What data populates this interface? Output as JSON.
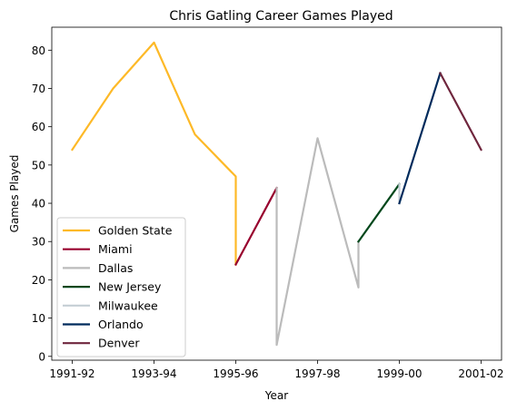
{
  "chart_data": {
    "type": "line",
    "title": "Chris Gatling Career Games Played",
    "xlabel": "Year",
    "ylabel": "Games Played",
    "x_tick_labels": [
      "1991-92",
      "1993-94",
      "1995-96",
      "1997-98",
      "1999-00",
      "2001-02"
    ],
    "x_tick_positions": [
      0,
      2,
      4,
      6,
      8,
      10
    ],
    "y_ticks": [
      0,
      10,
      20,
      30,
      40,
      50,
      60,
      70,
      80
    ],
    "xlim": [
      -0.5,
      10.5
    ],
    "ylim": [
      -1,
      86
    ],
    "grid": false,
    "legend_position": "lower-left",
    "series": [
      {
        "name": "Golden State",
        "color": "#FDB927",
        "points": [
          [
            0,
            54
          ],
          [
            1,
            70
          ],
          [
            2,
            82
          ],
          [
            3,
            58
          ],
          [
            4,
            47
          ],
          [
            4,
            24
          ]
        ]
      },
      {
        "name": "Miami",
        "color": "#98002E",
        "points": [
          [
            4,
            24
          ],
          [
            5,
            44
          ]
        ]
      },
      {
        "name": "Dallas",
        "color": "#BBBBBB",
        "points": [
          [
            5,
            44
          ],
          [
            5,
            3
          ],
          [
            6,
            57
          ],
          [
            7,
            18
          ],
          [
            7,
            30
          ]
        ]
      },
      {
        "name": "New Jersey",
        "color": "#00471B",
        "points": [
          [
            7,
            30
          ],
          [
            8,
            45
          ]
        ]
      },
      {
        "name": "Milwaukee",
        "color": "#C4CED4",
        "points": [
          [
            8,
            45
          ],
          [
            8,
            40
          ]
        ]
      },
      {
        "name": "Orlando",
        "color": "#002B5C",
        "points": [
          [
            8,
            40
          ],
          [
            9,
            74
          ]
        ]
      },
      {
        "name": "Denver",
        "color": "#6F263D",
        "points": [
          [
            9,
            74
          ],
          [
            10,
            54
          ]
        ]
      }
    ]
  }
}
